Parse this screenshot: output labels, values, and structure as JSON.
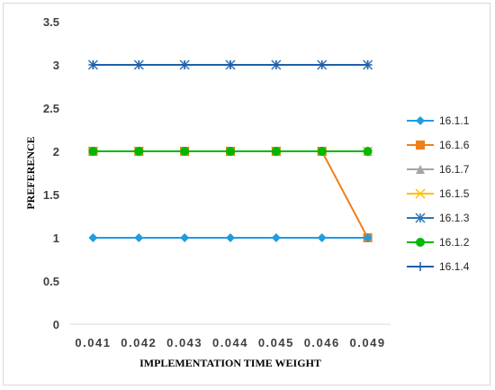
{
  "chart_data": {
    "type": "line",
    "title": "",
    "xlabel": "IMPLEMENTATION TIME WEIGHT",
    "ylabel": "PREFERENCE",
    "categories": [
      "0.041",
      "0.042",
      "0.043",
      "0.044",
      "0.045",
      "0.046",
      "0.049"
    ],
    "ylim": [
      0,
      3.5
    ],
    "yticks": [
      "0",
      "0.5",
      "1",
      "1.5",
      "2",
      "2.5",
      "3",
      "3.5"
    ],
    "grid": false,
    "legend_position": "right",
    "series": [
      {
        "name": "16.1.1",
        "color": "#1f9ce0",
        "marker": "diamond",
        "values": [
          1,
          1,
          1,
          1,
          1,
          1,
          1
        ]
      },
      {
        "name": "16.1.6",
        "color": "#f07f1a",
        "marker": "square",
        "values": [
          2,
          2,
          2,
          2,
          2,
          2,
          1
        ]
      },
      {
        "name": "16.1.7",
        "color": "#a5a5a5",
        "marker": "triangle",
        "values": [
          2,
          2,
          2,
          2,
          2,
          2,
          2
        ]
      },
      {
        "name": "16.1.5",
        "color": "#ffc000",
        "marker": "x",
        "values": [
          2,
          2,
          2,
          2,
          2,
          2,
          2
        ]
      },
      {
        "name": "16.1.3",
        "color": "#2e75b6",
        "marker": "star",
        "values": [
          3,
          3,
          3,
          3,
          3,
          3,
          3
        ]
      },
      {
        "name": "16.1.2",
        "color": "#00b800",
        "marker": "circle",
        "values": [
          2,
          2,
          2,
          2,
          2,
          2,
          2
        ]
      },
      {
        "name": "16.1.4",
        "color": "#1f5fa8",
        "marker": "plus",
        "values": [
          3,
          3,
          3,
          3,
          3,
          3,
          3
        ]
      }
    ]
  }
}
